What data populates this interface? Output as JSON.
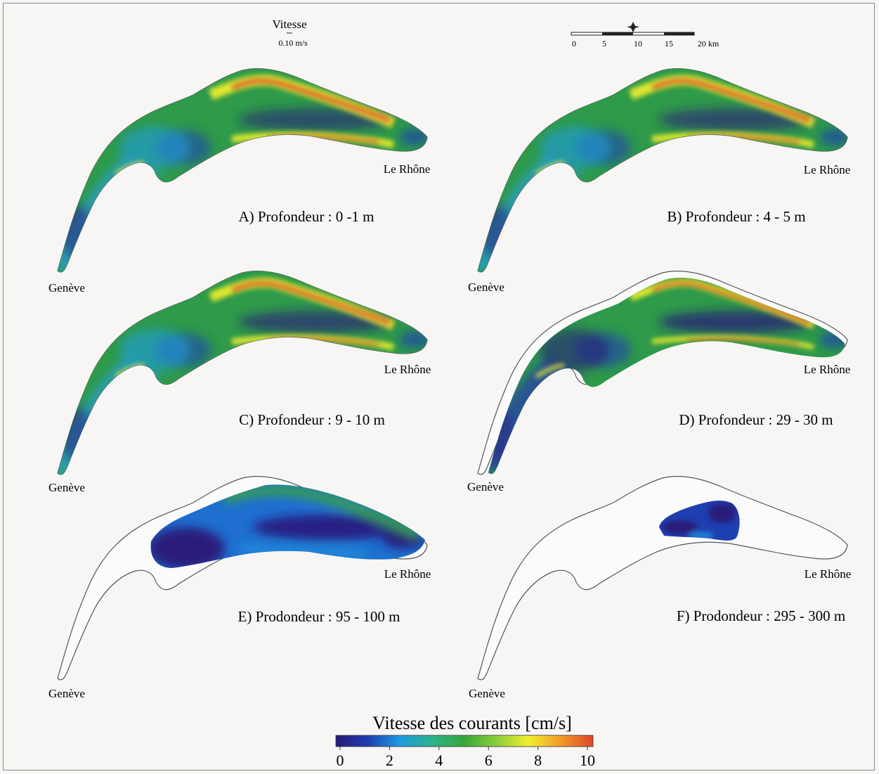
{
  "legend_vector": {
    "label": "Vitesse",
    "value": "0.10 m/s"
  },
  "scale_bar": {
    "ticks": [
      "0",
      "5",
      "10",
      "15",
      "20 km"
    ]
  },
  "panels": [
    {
      "id": "A",
      "title": "A) Profondeur : 0  -1 m",
      "geneve": "Genève",
      "rhone": "Le Rhône",
      "coverage": "full",
      "intensity": 1.0
    },
    {
      "id": "B",
      "title": "B) Profondeur : 4  - 5 m",
      "geneve": "Genève",
      "rhone": "Le Rhône",
      "coverage": "full",
      "intensity": 0.95
    },
    {
      "id": "C",
      "title": "C) Profondeur : 9  - 10 m",
      "geneve": "Genève",
      "rhone": "Le Rhône",
      "coverage": "full",
      "intensity": 0.9
    },
    {
      "id": "D",
      "title": "D) Profondeur : 29  - 30 m",
      "geneve": "Genève",
      "rhone": "Le Rhône",
      "coverage": "inset",
      "intensity": 0.7
    },
    {
      "id": "E",
      "title": "E) Prodondeur : 95 - 100 m",
      "geneve": "Genève",
      "rhone": "Le Rhône",
      "coverage": "grand-lac",
      "intensity": 0.45
    },
    {
      "id": "F",
      "title": "F) Prodondeur : 295 - 300 m",
      "geneve": "Genève",
      "rhone": "Le Rhône",
      "coverage": "deep",
      "intensity": 0.15
    }
  ],
  "colorbar": {
    "title": "Vitesse des courants [cm/s]",
    "ticks": [
      "0",
      "2",
      "4",
      "6",
      "8",
      "10"
    ],
    "range": [
      0,
      10
    ],
    "colors": [
      "#2a1a7a",
      "#1f3fb0",
      "#1e9be0",
      "#2bb38a",
      "#3aa63a",
      "#8ccf3a",
      "#f2ee2e",
      "#f39a2a",
      "#e0452a"
    ]
  }
}
